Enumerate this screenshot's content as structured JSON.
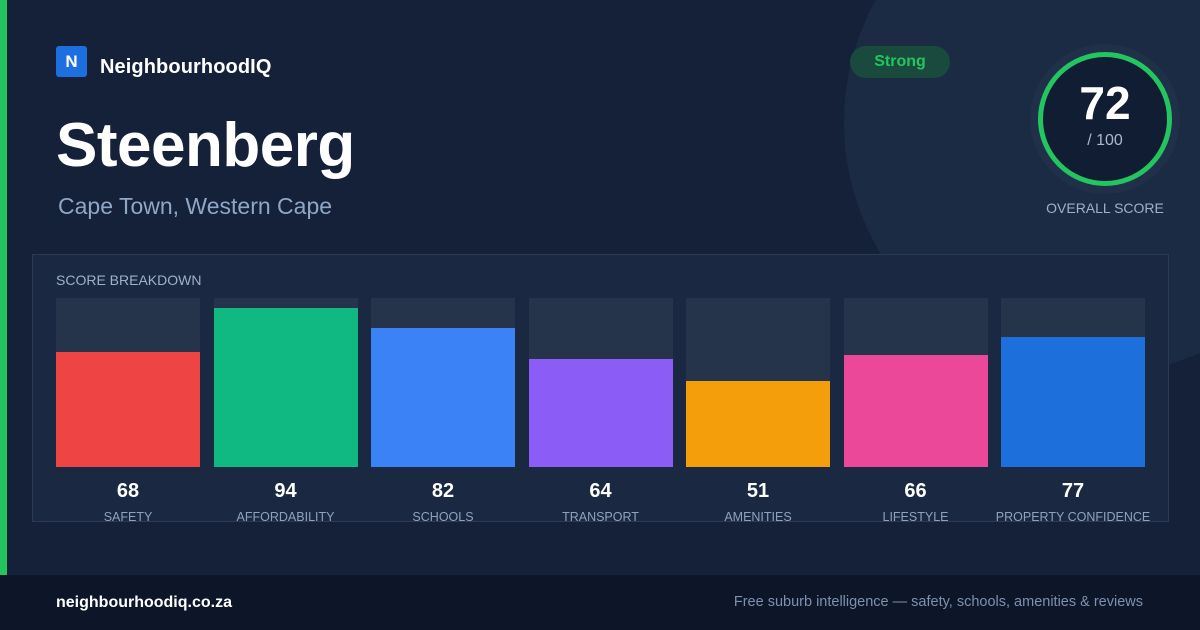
{
  "brand": {
    "logo_letter": "N",
    "name": "NeighbourhoodIQ"
  },
  "header": {
    "title": "Steenberg",
    "location": "Cape Town, Western Cape",
    "rating_badge": "Strong"
  },
  "overall_score": {
    "value": "72",
    "out_of": "/ 100",
    "label": "OVERALL SCORE",
    "ring_color": "#22c55e"
  },
  "breakdown": {
    "title": "SCORE BREAKDOWN",
    "categories": [
      {
        "label": "SAFETY",
        "value": 68,
        "color": "#ef4444"
      },
      {
        "label": "AFFORDABILITY",
        "value": 94,
        "color": "#10b981"
      },
      {
        "label": "SCHOOLS",
        "value": 82,
        "color": "#3b82f6"
      },
      {
        "label": "TRANSPORT",
        "value": 64,
        "color": "#8b5cf6"
      },
      {
        "label": "AMENITIES",
        "value": 51,
        "color": "#f59e0b"
      },
      {
        "label": "LIFESTYLE",
        "value": 66,
        "color": "#ec4899"
      },
      {
        "label": "PROPERTY CONFIDENCE",
        "value": 77,
        "color": "#1d6fdc"
      }
    ]
  },
  "footer": {
    "domain": "neighbourhoodiq.co.za",
    "tagline": "Free suburb intelligence — safety, schools, amenities & reviews"
  },
  "colors": {
    "accent": "#22c55e",
    "background": "#152139"
  }
}
